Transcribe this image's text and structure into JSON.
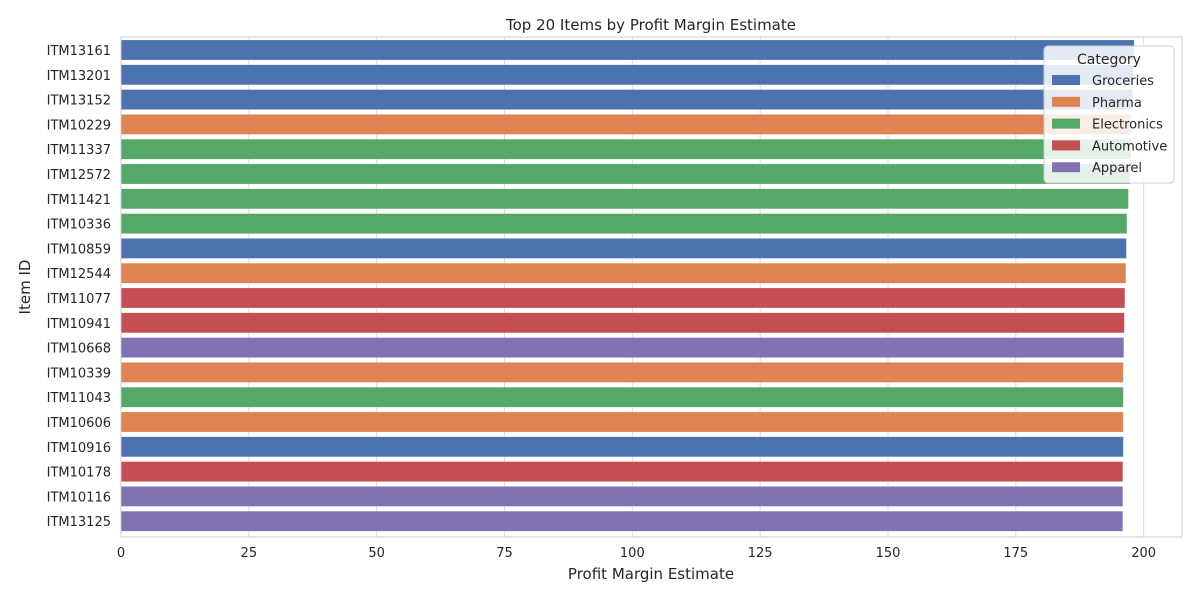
{
  "chart_data": {
    "type": "bar",
    "orientation": "horizontal",
    "title": "Top 20 Items by Profit Margin Estimate",
    "xlabel": "Profit Margin Estimate",
    "ylabel": "Item ID",
    "xlim": [
      0,
      207.5
    ],
    "xticks": [
      0,
      25,
      50,
      75,
      100,
      125,
      150,
      175,
      200
    ],
    "grid": true,
    "legend": {
      "title": "Category",
      "placement": "top-right",
      "entries": [
        {
          "name": "Groceries",
          "color": "#4c72b0"
        },
        {
          "name": "Pharma",
          "color": "#dd8452"
        },
        {
          "name": "Electronics",
          "color": "#55a868"
        },
        {
          "name": "Automotive",
          "color": "#c44e52"
        },
        {
          "name": "Apparel",
          "color": "#8172b3"
        }
      ]
    },
    "categories": [
      "ITM13161",
      "ITM13201",
      "ITM13152",
      "ITM10229",
      "ITM11337",
      "ITM12572",
      "ITM11421",
      "ITM10336",
      "ITM10859",
      "ITM12544",
      "ITM11077",
      "ITM10941",
      "ITM10668",
      "ITM10339",
      "ITM11043",
      "ITM10606",
      "ITM10916",
      "ITM10178",
      "ITM10116",
      "ITM13125"
    ],
    "values": [
      198.1,
      197.9,
      197.8,
      197.6,
      197.5,
      197.3,
      197.0,
      196.7,
      196.6,
      196.5,
      196.3,
      196.2,
      196.1,
      196.0,
      196.0,
      196.0,
      196.0,
      195.9,
      195.9,
      195.9
    ],
    "bar_category": [
      "Groceries",
      "Groceries",
      "Groceries",
      "Pharma",
      "Electronics",
      "Electronics",
      "Electronics",
      "Electronics",
      "Groceries",
      "Pharma",
      "Automotive",
      "Automotive",
      "Apparel",
      "Pharma",
      "Electronics",
      "Pharma",
      "Groceries",
      "Automotive",
      "Apparel",
      "Apparel"
    ]
  }
}
